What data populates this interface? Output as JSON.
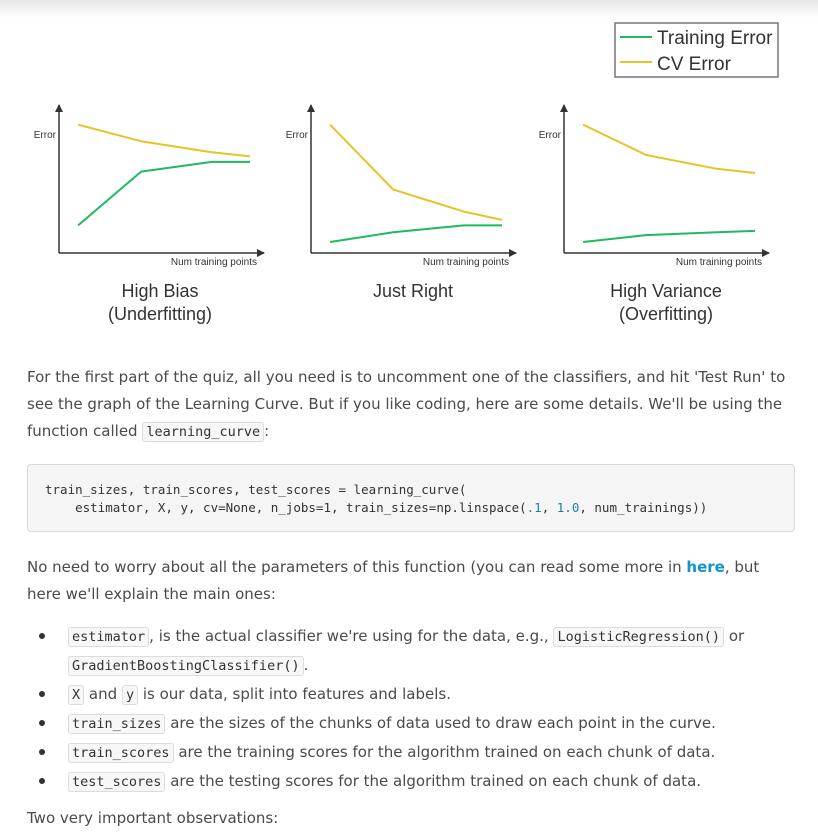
{
  "figure": {
    "legend": [
      {
        "label": "Training Error",
        "color": "#1fba5d"
      },
      {
        "label": "CV Error",
        "color": "#e8c327"
      }
    ],
    "colors": {
      "training": "#1fba5d",
      "cv": "#e8c327",
      "axis": "#333333"
    }
  },
  "chart_data": [
    {
      "type": "line",
      "title": "High Bias (Underfitting)",
      "title_lines": [
        "High Bias",
        "(Underfitting)"
      ],
      "xlabel": "Num training points",
      "ylabel": "Error",
      "grid": false,
      "xlim": [
        0,
        10
      ],
      "ylim": [
        0,
        10
      ],
      "series": [
        {
          "name": "Training Error",
          "x": [
            1,
            4.3,
            8,
            10
          ],
          "y": [
            2,
            5.9,
            6.6,
            6.6
          ]
        },
        {
          "name": "CV Error",
          "x": [
            1,
            4.3,
            8,
            10
          ],
          "y": [
            9.3,
            8.1,
            7.3,
            7.0
          ]
        }
      ]
    },
    {
      "type": "line",
      "title": "Just Right",
      "title_lines": [
        "Just Right"
      ],
      "xlabel": "Num training points",
      "ylabel": "Error",
      "grid": false,
      "xlim": [
        0,
        10
      ],
      "ylim": [
        0,
        10
      ],
      "series": [
        {
          "name": "Training Error",
          "x": [
            1,
            4.3,
            8,
            10
          ],
          "y": [
            0.8,
            1.5,
            2.0,
            2.0
          ]
        },
        {
          "name": "CV Error",
          "x": [
            1,
            4.3,
            8,
            10
          ],
          "y": [
            9.3,
            4.6,
            3.0,
            2.4
          ]
        }
      ]
    },
    {
      "type": "line",
      "title": "High Variance (Overfitting)",
      "title_lines": [
        "High Variance",
        "(Overfitting)"
      ],
      "xlabel": "Num training points",
      "ylabel": "Error",
      "grid": false,
      "xlim": [
        0,
        10
      ],
      "ylim": [
        0,
        10
      ],
      "series": [
        {
          "name": "Training Error",
          "x": [
            1,
            4.3,
            8,
            10
          ],
          "y": [
            0.8,
            1.3,
            1.5,
            1.6
          ]
        },
        {
          "name": "CV Error",
          "x": [
            1,
            4.3,
            8,
            10
          ],
          "y": [
            9.3,
            7.1,
            6.1,
            5.8
          ]
        }
      ]
    }
  ],
  "intro": {
    "text": "For the first part of the quiz, all you need is to uncomment one of the classifiers, and hit 'Test Run' to see the graph of the Learning Curve. But if you like coding, here are some details. We'll be using the function called",
    "code": "learning_curve",
    "end": ":"
  },
  "code_block": {
    "line1": "train_sizes, train_scores, test_scores = learning_curve(",
    "line2_pre": "    estimator, X, y, cv=None, n_jobs=1, train_sizes=np.linspace(",
    "line2_n1": ".1",
    "line2_sep": ", ",
    "line2_n2": "1.0",
    "line2_post": ", num_trainings))"
  },
  "params_para": {
    "text1": "No need to worry about all the parameters of this function (you can read some more in ",
    "link": "here",
    "text2": ", but here we'll explain the main ones:"
  },
  "bullets": {
    "b1": {
      "code1": "estimator",
      "text1": ", is the actual classifier we're using for the data, e.g.,",
      "code2": "LogisticRegression()",
      "text2": "or",
      "code3": "GradientBoostingClassifier()",
      "text3": "."
    },
    "b2": {
      "code1": "X",
      "text1": "and",
      "code2": "y",
      "text2": "is our data, split into features and labels."
    },
    "b3": {
      "code": "train_sizes",
      "text": "are the sizes of the chunks of data used to draw each point in the curve."
    },
    "b4": {
      "code": "train_scores",
      "text": "are the training scores for the algorithm trained on each chunk of data."
    },
    "b5": {
      "code": "test_scores",
      "text": "are the testing scores for the algorithm trained on each chunk of data."
    }
  },
  "closing": "Two very important observations:"
}
